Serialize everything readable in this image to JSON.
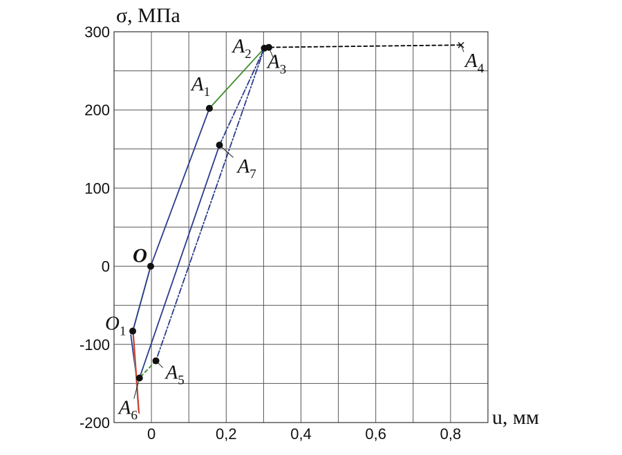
{
  "chart_data": {
    "type": "line",
    "title": "",
    "ylabel": "σ, МПа",
    "xlabel": "u, мм",
    "xlim": [
      -0.1,
      0.9
    ],
    "ylim": [
      -200,
      300
    ],
    "x_grid": [
      -0.1,
      0,
      0.1,
      0.2,
      0.3,
      0.4,
      0.5,
      0.6,
      0.7,
      0.8,
      0.9
    ],
    "y_grid": [
      -200,
      -150,
      -100,
      -50,
      0,
      50,
      100,
      150,
      200,
      250,
      300
    ],
    "x_ticks": [
      {
        "value": 0,
        "label": "0"
      },
      {
        "value": 0.2,
        "label": "0,2"
      },
      {
        "value": 0.4,
        "label": "0,4"
      },
      {
        "value": 0.6,
        "label": "0,6"
      },
      {
        "value": 0.8,
        "label": "0,8"
      }
    ],
    "y_ticks": [
      {
        "value": 300,
        "label": "300"
      },
      {
        "value": 200,
        "label": "200"
      },
      {
        "value": 100,
        "label": "100"
      },
      {
        "value": 0,
        "label": "0"
      },
      {
        "value": -100,
        "label": "-100"
      },
      {
        "value": -200,
        "label": "-200"
      }
    ],
    "grid": true,
    "points": [
      {
        "id": "O",
        "base": "O",
        "sub": "",
        "x": -0.002,
        "y": 0,
        "marker": "dot",
        "bold": true
      },
      {
        "id": "O1",
        "base": "O",
        "sub": "1",
        "x": -0.05,
        "y": -83,
        "marker": "dot",
        "bold": false
      },
      {
        "id": "A1",
        "base": "A",
        "sub": "1",
        "x": 0.155,
        "y": 202,
        "marker": "dot",
        "bold": false
      },
      {
        "id": "A2",
        "base": "A",
        "sub": "2",
        "x": 0.302,
        "y": 279,
        "marker": "dot",
        "bold": false
      },
      {
        "id": "A3",
        "base": "A",
        "sub": "3",
        "x": 0.314,
        "y": 280,
        "marker": "dot",
        "bold": false
      },
      {
        "id": "A4",
        "base": "A",
        "sub": "4",
        "x": 0.828,
        "y": 283,
        "marker": "cross",
        "bold": false
      },
      {
        "id": "A5",
        "base": "A",
        "sub": "5",
        "x": 0.012,
        "y": -121,
        "marker": "dot",
        "bold": false
      },
      {
        "id": "A6",
        "base": "A",
        "sub": "6",
        "x": -0.032,
        "y": -143,
        "marker": "dot",
        "bold": false
      },
      {
        "id": "A7",
        "base": "A",
        "sub": "7",
        "x": 0.182,
        "y": 155,
        "marker": "dot",
        "bold": false
      }
    ],
    "series": [
      {
        "color": "#3b8a2a",
        "style": "solid",
        "points": [
          [
            -0.05,
            -83
          ],
          [
            -0.002,
            0
          ]
        ]
      },
      {
        "color": "#2a3a8c",
        "style": "solid",
        "points": [
          [
            -0.05,
            -83
          ],
          [
            -0.002,
            0
          ]
        ]
      },
      {
        "color": "#2a3a8c",
        "style": "solid",
        "points": [
          [
            -0.002,
            0
          ],
          [
            0.155,
            202
          ]
        ]
      },
      {
        "color": "#3b8a2a",
        "style": "solid",
        "points": [
          [
            0.155,
            202
          ],
          [
            0.302,
            279
          ]
        ]
      },
      {
        "color": "#000000",
        "style": "dashed",
        "points": [
          [
            0.302,
            279
          ],
          [
            0.314,
            280
          ],
          [
            0.828,
            283
          ]
        ]
      },
      {
        "color": "#2a3a8c",
        "style": "dashdot",
        "points": [
          [
            0.302,
            279
          ],
          [
            0.012,
            -121
          ]
        ]
      },
      {
        "color": "#3b8a2a",
        "style": "dashed",
        "points": [
          [
            0.012,
            -121
          ],
          [
            -0.032,
            -143
          ]
        ]
      },
      {
        "color": "#2a3a8c",
        "style": "solid",
        "points": [
          [
            -0.032,
            -143
          ],
          [
            0.182,
            155
          ]
        ]
      },
      {
        "color": "#2a3a8c",
        "style": "dashdot",
        "points": [
          [
            0.182,
            155
          ],
          [
            0.302,
            279
          ]
        ]
      },
      {
        "color": "#2a3a8c",
        "style": "solid",
        "points": [
          [
            -0.04,
            -143
          ],
          [
            -0.055,
            -88
          ]
        ]
      },
      {
        "color": "#8fb5b5",
        "style": "solid",
        "points": [
          [
            -0.05,
            -83
          ],
          [
            -0.035,
            -185
          ]
        ]
      },
      {
        "color": "#d2301e",
        "style": "solid",
        "points": [
          [
            -0.048,
            -88
          ],
          [
            -0.033,
            -188
          ]
        ]
      }
    ]
  }
}
